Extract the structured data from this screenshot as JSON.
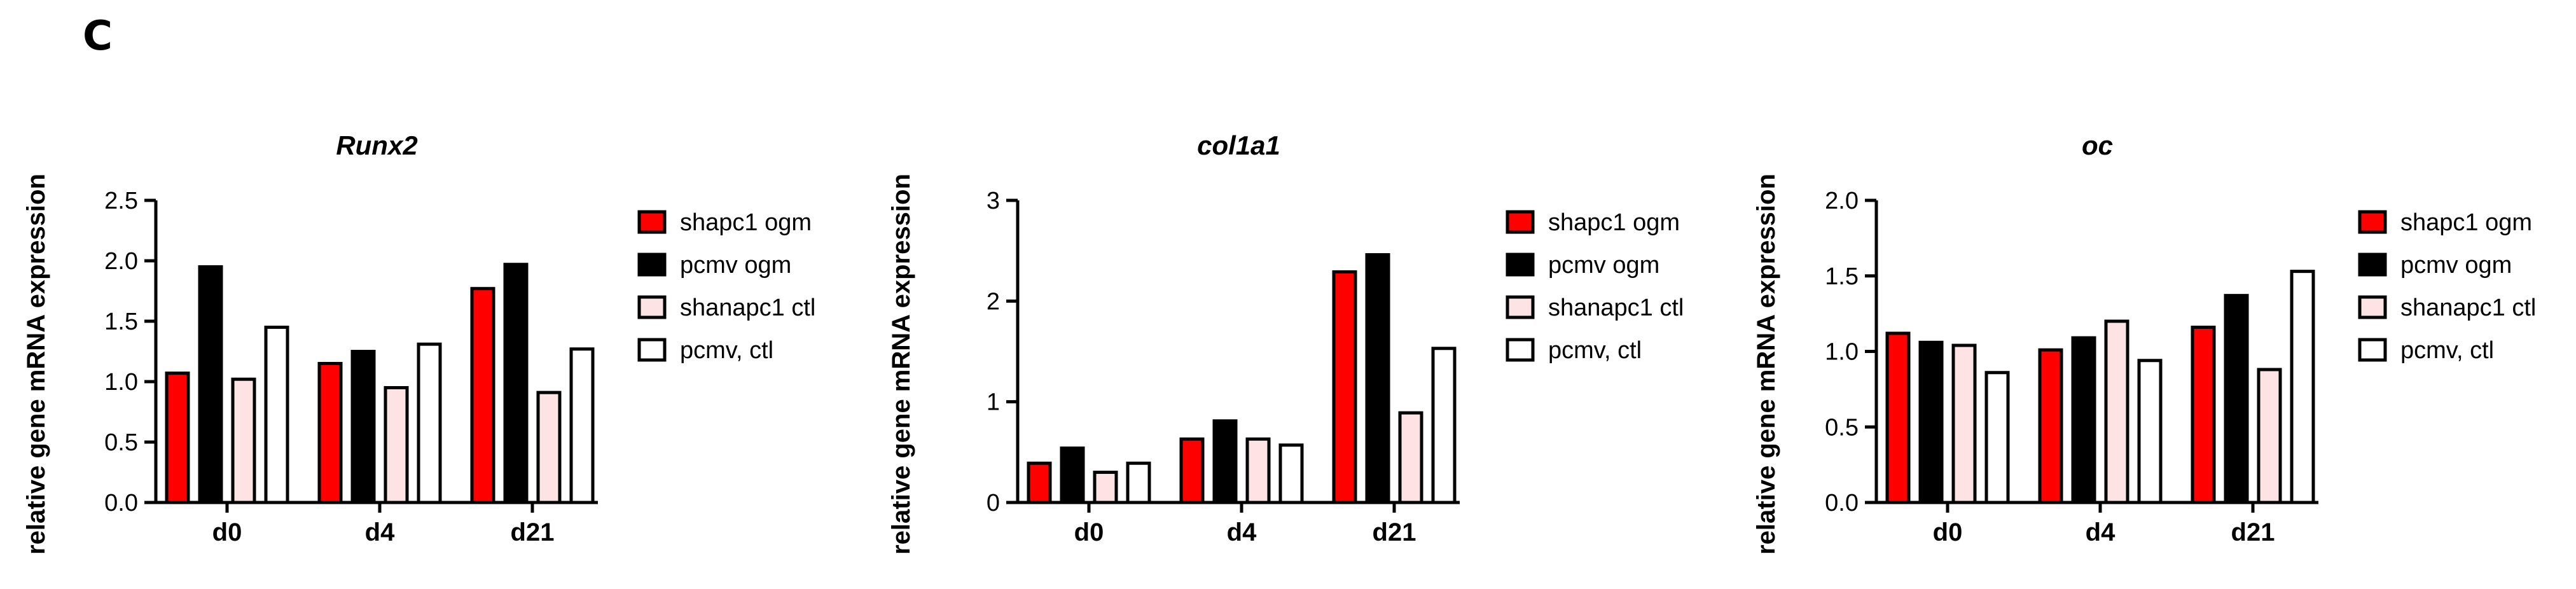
{
  "panel_label": "C",
  "chart_data": [
    {
      "type": "bar",
      "title": "Runx2",
      "xlabel": "",
      "ylabel": "relative gene mRNA expression",
      "categories": [
        "d0",
        "d4",
        "d21"
      ],
      "ylim": [
        0,
        2.5
      ],
      "yticks": [
        "0.0",
        "0.5",
        "1.0",
        "1.5",
        "2.0",
        "2.5"
      ],
      "series": [
        {
          "name": "shapc1 ogm",
          "fill": "#ff0000",
          "values": [
            1.07,
            1.15,
            1.77
          ]
        },
        {
          "name": "pcmv ogm",
          "fill": "#000000",
          "values": [
            1.95,
            1.25,
            1.97
          ]
        },
        {
          "name": "shanapc1 ctl",
          "fill": "#fde3e3",
          "values": [
            1.02,
            0.95,
            0.91
          ]
        },
        {
          "name": "pcmv, ctl",
          "fill": "#ffffff",
          "values": [
            1.45,
            1.31,
            1.27
          ]
        }
      ],
      "grid": false,
      "legend_position": "right"
    },
    {
      "type": "bar",
      "title": "col1a1",
      "xlabel": "",
      "ylabel": "relative gene mRNA expression",
      "categories": [
        "d0",
        "d4",
        "d21"
      ],
      "ylim": [
        0,
        3
      ],
      "yticks": [
        "0",
        "1",
        "2",
        "3"
      ],
      "series": [
        {
          "name": "shapc1 ogm",
          "fill": "#ff0000",
          "values": [
            0.39,
            0.63,
            2.29
          ]
        },
        {
          "name": "pcmv ogm",
          "fill": "#000000",
          "values": [
            0.54,
            0.81,
            2.46
          ]
        },
        {
          "name": "shanapc1 ctl",
          "fill": "#fde3e3",
          "values": [
            0.3,
            0.63,
            0.89
          ]
        },
        {
          "name": "pcmv, ctl",
          "fill": "#ffffff",
          "values": [
            0.39,
            0.57,
            1.53
          ]
        }
      ],
      "grid": false,
      "legend_position": "right"
    },
    {
      "type": "bar",
      "title": "oc",
      "xlabel": "",
      "ylabel": "relative gene mRNA expression",
      "categories": [
        "d0",
        "d4",
        "d21"
      ],
      "ylim": [
        0,
        2.0
      ],
      "yticks": [
        "0.0",
        "0.5",
        "1.0",
        "1.5",
        "2.0"
      ],
      "series": [
        {
          "name": "shapc1 ogm",
          "fill": "#ff0000",
          "values": [
            1.12,
            1.01,
            1.16
          ]
        },
        {
          "name": "pcmv ogm",
          "fill": "#000000",
          "values": [
            1.06,
            1.09,
            1.37
          ]
        },
        {
          "name": "shanapc1 ctl",
          "fill": "#fde3e3",
          "values": [
            1.04,
            1.2,
            0.88
          ]
        },
        {
          "name": "pcmv, ctl",
          "fill": "#ffffff",
          "values": [
            0.86,
            0.94,
            1.53
          ]
        }
      ],
      "grid": false,
      "legend_position": "right"
    }
  ]
}
